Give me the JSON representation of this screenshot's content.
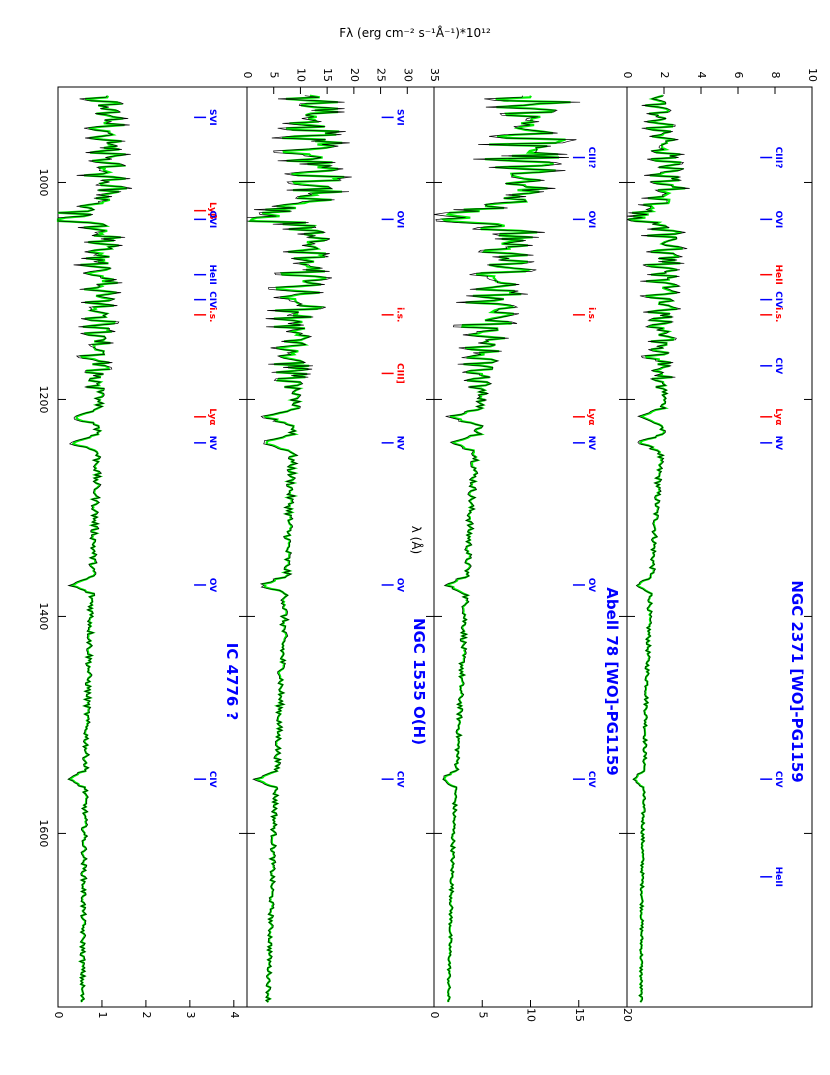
{
  "chart_data": {
    "type": "line",
    "layout": "four stacked panels, rotated 90 degrees",
    "ylabel": "Fλ (erg cm⁻² s⁻¹Å⁻¹)*10¹²",
    "xlabel": "λ (Å)",
    "xlim": [
      912,
      1760
    ],
    "x_ticks": [
      "1000",
      "1200",
      "1400",
      "1600"
    ],
    "x_tick_values": [
      1000,
      1200,
      1400,
      1600
    ],
    "colors": {
      "observed": "#000000",
      "model": "#00ee00",
      "labels_blue": "#0000ff",
      "labels_red": "#ff0000",
      "extra": "#ff66ff",
      "grey": "#a0a0a0"
    },
    "panels": [
      {
        "object": "NGC 2371 [WO]-PG1159",
        "ylim": [
          0,
          10
        ],
        "y_ticks": [
          "0",
          "2",
          "4",
          "6",
          "8",
          "10"
        ],
        "y_tick_values": [
          0,
          2,
          4,
          6,
          8,
          10
        ],
        "continuum": [
          [
            920,
            1.8
          ],
          [
            1000,
            2.6
          ],
          [
            1100,
            2.3
          ],
          [
            1200,
            2.0
          ],
          [
            1300,
            1.6
          ],
          [
            1400,
            1.2
          ],
          [
            1500,
            1.0
          ],
          [
            1600,
            0.85
          ],
          [
            1750,
            0.75
          ]
        ],
        "lines": [
          {
            "label": "CIII?",
            "x": 977,
            "color": "blue"
          },
          {
            "label": "OVI",
            "x": 1034,
            "color": "blue"
          },
          {
            "label": "HeII",
            "x": 1085,
            "color": "red"
          },
          {
            "label": "CIV",
            "x": 1108,
            "color": "blue"
          },
          {
            "label": "i.s.",
            "x": 1122,
            "color": "red"
          },
          {
            "label": "CIV",
            "x": 1169,
            "color": "blue"
          },
          {
            "label": "Lyα",
            "x": 1216,
            "color": "red"
          },
          {
            "label": "NV",
            "x": 1240,
            "color": "blue"
          },
          {
            "label": "CIV",
            "x": 1550,
            "color": "blue"
          },
          {
            "label": "HeII",
            "x": 1640,
            "color": "blue"
          }
        ]
      },
      {
        "object": "Abell 78 [WO]-PG1159",
        "ylim": [
          0,
          20
        ],
        "y_ticks": [
          "0",
          "5",
          "10",
          "15",
          "20"
        ],
        "y_tick_values": [
          0,
          5,
          10,
          15,
          20
        ],
        "continuum": [
          [
            920,
            12
          ],
          [
            1000,
            10
          ],
          [
            1100,
            7.5
          ],
          [
            1200,
            5.0
          ],
          [
            1300,
            3.8
          ],
          [
            1400,
            3.2
          ],
          [
            1500,
            2.6
          ],
          [
            1600,
            2.0
          ],
          [
            1750,
            1.5
          ]
        ],
        "lines": [
          {
            "label": "CIII?",
            "x": 977,
            "color": "blue"
          },
          {
            "label": "OVI",
            "x": 1034,
            "color": "blue"
          },
          {
            "label": "i.s.",
            "x": 1122,
            "color": "red"
          },
          {
            "label": "Lyα",
            "x": 1216,
            "color": "red"
          },
          {
            "label": "NV",
            "x": 1240,
            "color": "blue"
          },
          {
            "label": "OV",
            "x": 1371,
            "color": "blue"
          },
          {
            "label": "CIV",
            "x": 1550,
            "color": "blue"
          }
        ]
      },
      {
        "object": "NGC 1535 O(H)",
        "ylim": [
          0,
          35
        ],
        "y_ticks": [
          "0",
          "5",
          "10",
          "15",
          "20",
          "25",
          "30",
          "35"
        ],
        "y_tick_values": [
          0,
          5,
          10,
          15,
          20,
          25,
          30,
          35
        ],
        "continuum": [
          [
            920,
            14
          ],
          [
            1000,
            15
          ],
          [
            1100,
            12
          ],
          [
            1200,
            9
          ],
          [
            1300,
            8
          ],
          [
            1400,
            7
          ],
          [
            1500,
            6
          ],
          [
            1600,
            5
          ],
          [
            1750,
            4
          ]
        ],
        "lines": [
          {
            "label": "SVI",
            "x": 940,
            "color": "blue"
          },
          {
            "label": "OVI",
            "x": 1034,
            "color": "blue"
          },
          {
            "label": "i.s.",
            "x": 1122,
            "color": "red"
          },
          {
            "label": "CIII]",
            "x": 1176,
            "color": "red"
          },
          {
            "label": "NV",
            "x": 1240,
            "color": "blue"
          },
          {
            "label": "OV",
            "x": 1371,
            "color": "blue"
          },
          {
            "label": "CIV",
            "x": 1550,
            "color": "blue"
          }
        ]
      },
      {
        "object": "IC 4776 ?",
        "ylim": [
          0,
          4.3
        ],
        "y_ticks": [
          "0",
          "1",
          "2",
          "3",
          "4"
        ],
        "y_tick_values": [
          0,
          1,
          2,
          3,
          4
        ],
        "continuum": [
          [
            920,
            1.2
          ],
          [
            1000,
            1.3
          ],
          [
            1100,
            1.1
          ],
          [
            1200,
            0.95
          ],
          [
            1300,
            0.85
          ],
          [
            1400,
            0.75
          ],
          [
            1500,
            0.65
          ],
          [
            1600,
            0.6
          ],
          [
            1750,
            0.55
          ]
        ],
        "lines": [
          {
            "label": "SVI",
            "x": 940,
            "color": "blue"
          },
          {
            "label": "Lyβ",
            "x": 1026,
            "color": "red"
          },
          {
            "label": "OVI",
            "x": 1034,
            "color": "blue"
          },
          {
            "label": "HeII",
            "x": 1085,
            "color": "blue"
          },
          {
            "label": "CIV",
            "x": 1108,
            "color": "blue"
          },
          {
            "label": "i.s.",
            "x": 1122,
            "color": "red"
          },
          {
            "label": "Lyα",
            "x": 1216,
            "color": "red"
          },
          {
            "label": "NV",
            "x": 1240,
            "color": "blue"
          },
          {
            "label": "OV",
            "x": 1371,
            "color": "blue"
          },
          {
            "label": "CIV",
            "x": 1550,
            "color": "blue"
          }
        ]
      }
    ]
  }
}
